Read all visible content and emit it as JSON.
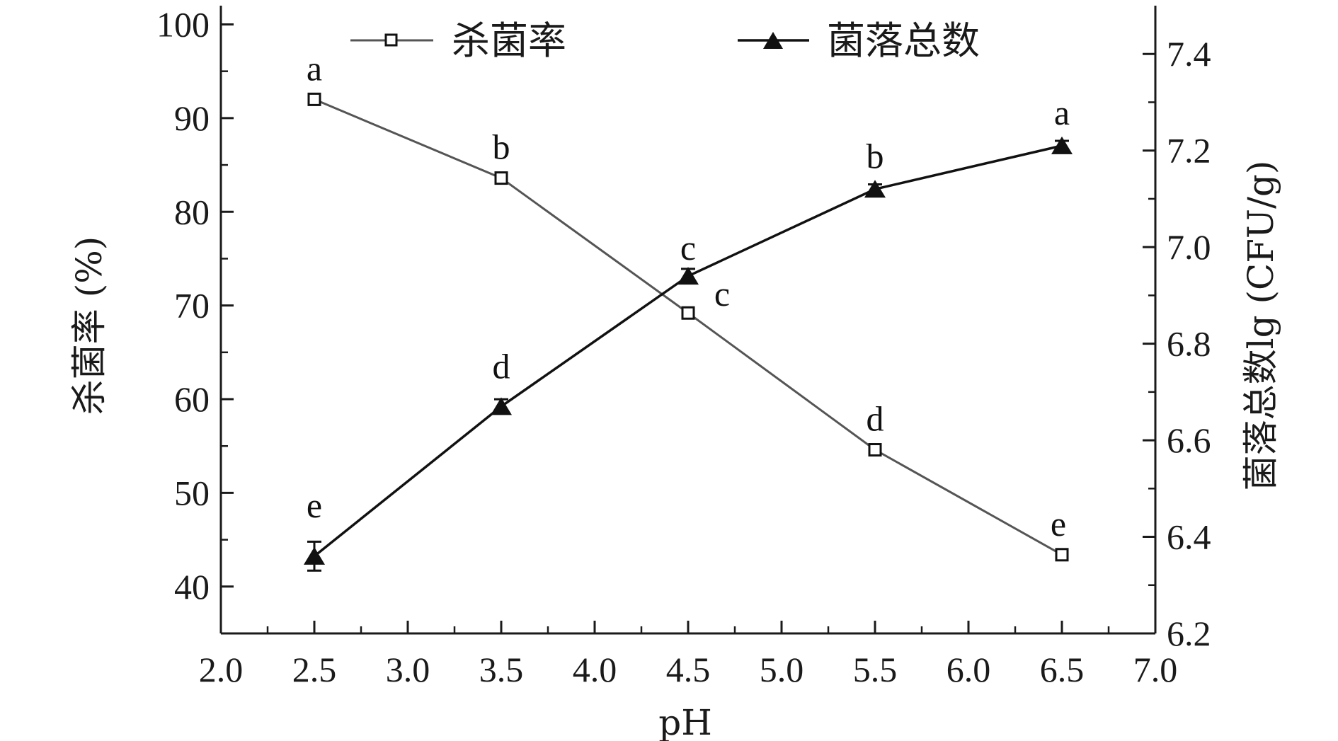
{
  "chart_data": {
    "type": "line",
    "xlabel": "pH",
    "ylabel_left": "杀菌率 (%)",
    "ylabel_right": "菌落总数lg (CFU/g)",
    "xlim": [
      2.0,
      7.0
    ],
    "ylim_left": [
      35,
      102
    ],
    "ylim_right": [
      6.2,
      7.5
    ],
    "x_ticks": [
      "2.0",
      "2.5",
      "3.0",
      "3.5",
      "4.0",
      "4.5",
      "5.0",
      "5.5",
      "6.0",
      "6.5",
      "7.0"
    ],
    "y_left_ticks": [
      "40",
      "50",
      "60",
      "70",
      "80",
      "90",
      "100"
    ],
    "y_right_ticks": [
      "6.2",
      "6.4",
      "6.6",
      "6.8",
      "7.0",
      "7.2",
      "7.4"
    ],
    "legend_position": "top",
    "grid": false,
    "series": [
      {
        "name": "杀菌率",
        "axis": "left",
        "color": "#555555",
        "marker": "open-square",
        "x": [
          2.5,
          3.5,
          4.5,
          5.5,
          6.5
        ],
        "y": [
          92.0,
          83.6,
          69.2,
          54.6,
          43.4
        ],
        "labels": [
          "a",
          "b",
          "c",
          "d",
          "e"
        ]
      },
      {
        "name": "菌落总数",
        "axis": "right",
        "color": "#111111",
        "marker": "filled-triangle",
        "x": [
          2.5,
          3.5,
          4.5,
          5.5,
          6.5
        ],
        "y": [
          6.36,
          6.67,
          6.94,
          7.12,
          7.21
        ],
        "error": [
          0.03,
          0.015,
          0.015,
          0.01,
          0.01
        ],
        "labels": [
          "e",
          "d",
          "c",
          "b",
          "a"
        ]
      }
    ]
  }
}
